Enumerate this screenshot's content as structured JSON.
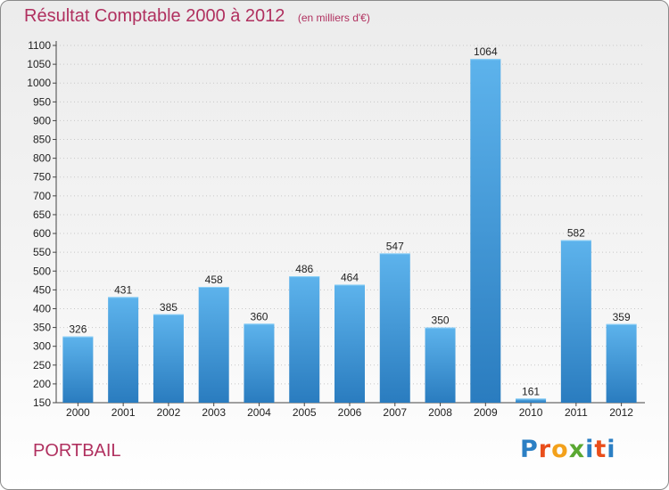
{
  "header": {
    "title": "Résultat Comptable 2000 à 2012",
    "unit": "(en milliers d'€)"
  },
  "footer": {
    "commune": "PORTBAIL",
    "logo_letters": [
      "P",
      "r",
      "o",
      "x",
      "i",
      "t",
      "i"
    ],
    "logo_colors": [
      "#2b7fc4",
      "#e94e1b",
      "#f3a11b",
      "#5aa832",
      "#2b7fc4",
      "#e94e1b",
      "#2b7fc4"
    ]
  },
  "colors": {
    "bar_top": "#5db3ec",
    "bar_bottom": "#2a7cbf",
    "title": "#b0305f",
    "grid": "#c8c8c8"
  },
  "chart_data": {
    "type": "bar",
    "title": "Résultat Comptable 2000 à 2012",
    "subtitle": "(en milliers d'€)",
    "xlabel": "",
    "ylabel": "",
    "categories": [
      "2000",
      "2001",
      "2002",
      "2003",
      "2004",
      "2005",
      "2006",
      "2007",
      "2008",
      "2009",
      "2010",
      "2011",
      "2012"
    ],
    "values": [
      326,
      431,
      385,
      458,
      360,
      486,
      464,
      547,
      350,
      1064,
      161,
      582,
      359
    ],
    "ylim": [
      150,
      1100
    ],
    "yticks": [
      150,
      200,
      250,
      300,
      350,
      400,
      450,
      500,
      550,
      600,
      650,
      700,
      750,
      800,
      850,
      900,
      950,
      1000,
      1050,
      1100
    ],
    "grid": "horizontal",
    "legend": "none",
    "data_labels": true
  }
}
